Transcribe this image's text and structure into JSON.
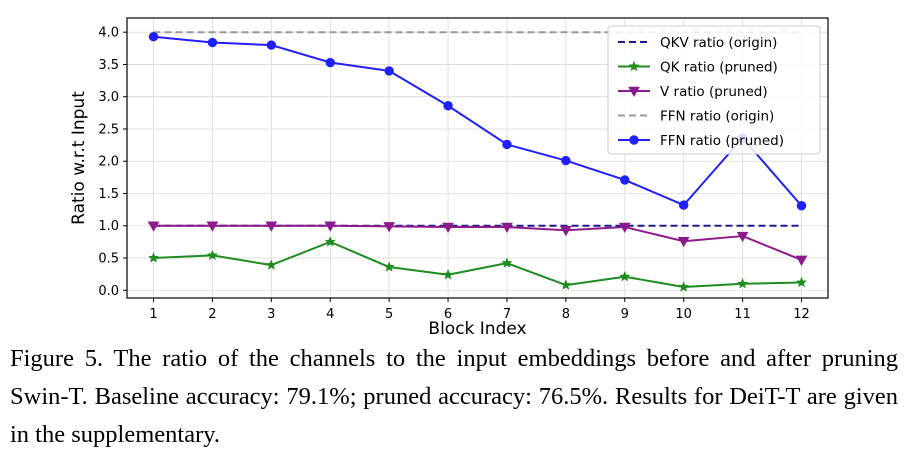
{
  "chart_data": {
    "type": "line",
    "xlabel": "Block Index",
    "ylabel": "Ratio w.r.t Input",
    "x": [
      1,
      2,
      3,
      4,
      5,
      6,
      7,
      8,
      9,
      10,
      11,
      12
    ],
    "xticks": [
      "1",
      "2",
      "3",
      "4",
      "5",
      "6",
      "7",
      "8",
      "9",
      "10",
      "11",
      "12"
    ],
    "yticks": [
      "0.0",
      "0.5",
      "1.0",
      "1.5",
      "2.0",
      "2.5",
      "3.0",
      "3.5",
      "4.0"
    ],
    "xlim": [
      0.55,
      12.45
    ],
    "ylim": [
      -0.12,
      4.22
    ],
    "grid": true,
    "legend_position": "top-right",
    "series": [
      {
        "name": "QKV ratio (origin)",
        "color": "#1a1a8c",
        "style": "dashed",
        "marker": "none",
        "values": [
          1,
          1,
          1,
          1,
          1,
          1,
          1,
          1,
          1,
          1,
          1,
          1
        ]
      },
      {
        "name": "QK ratio (pruned)",
        "color": "#1e8c1e",
        "style": "solid",
        "marker": "star",
        "values": [
          0.5,
          0.54,
          0.39,
          0.75,
          0.36,
          0.24,
          0.42,
          0.08,
          0.21,
          0.05,
          0.1,
          0.12
        ]
      },
      {
        "name": "V ratio (pruned)",
        "color": "#8c1a8c",
        "style": "solid",
        "marker": "triangle-down",
        "values": [
          1.0,
          1.0,
          1.0,
          1.0,
          0.99,
          0.98,
          0.98,
          0.93,
          0.98,
          0.76,
          0.84,
          0.47
        ]
      },
      {
        "name": "FFN ratio (origin)",
        "color": "#999999",
        "style": "dashed",
        "marker": "none",
        "values": [
          4,
          4,
          4,
          4,
          4,
          4,
          4,
          4,
          4,
          4,
          4,
          4
        ]
      },
      {
        "name": "FFN ratio (pruned)",
        "color": "#1f1fff",
        "style": "solid",
        "marker": "circle",
        "values": [
          3.93,
          3.84,
          3.8,
          3.53,
          3.4,
          2.86,
          2.26,
          2.01,
          1.71,
          1.32,
          2.36,
          1.31
        ]
      }
    ]
  },
  "caption": "Figure 5. The ratio of the channels to the input embeddings before and after pruning Swin-T. Baseline accuracy: 79.1%; pruned accuracy: 76.5%. Results for DeiT-T are given in the supplementary."
}
